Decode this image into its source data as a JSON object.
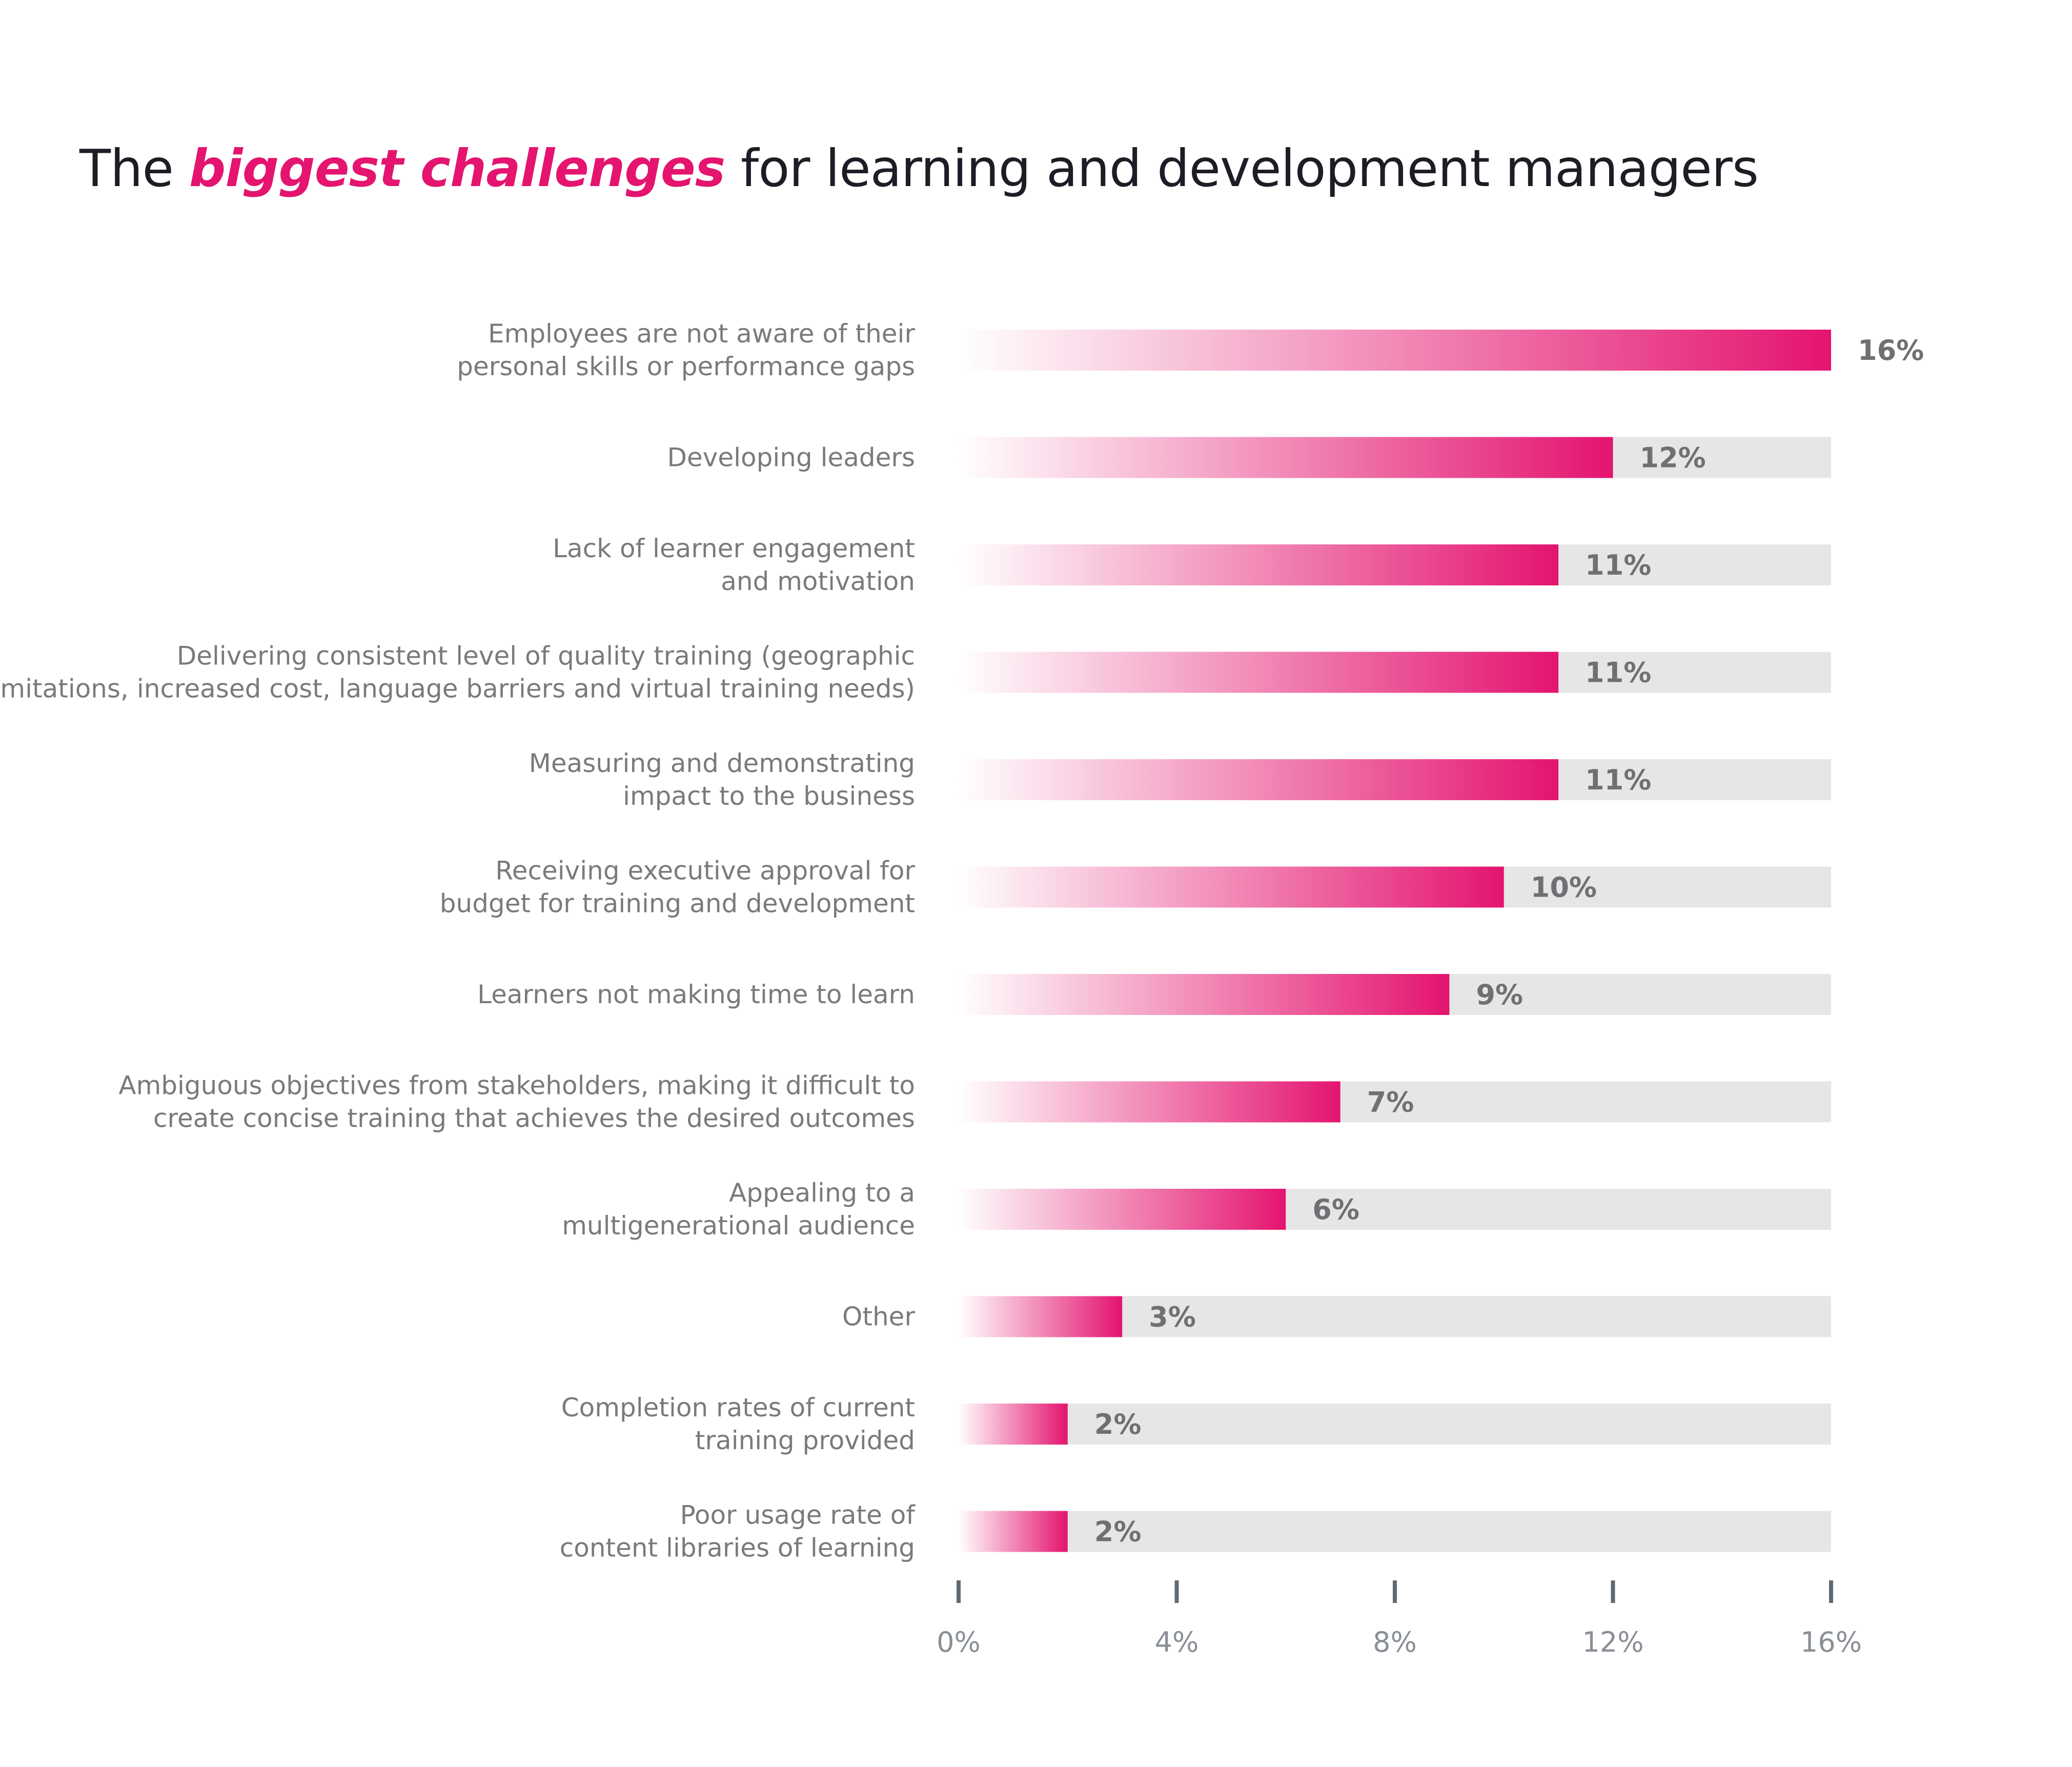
{
  "title": {
    "prefix": "The ",
    "highlight": "biggest challenges",
    "suffix": " for learning and development managers"
  },
  "colors": {
    "bar_start": "#ffffff",
    "bar_end": "#e4146f",
    "track": "#e6e6e6",
    "tick": "#5f6a74",
    "highlight": "#e4146f"
  },
  "chart_data": {
    "type": "bar",
    "orientation": "horizontal",
    "categories": [
      [
        "Employees are not aware of their",
        "personal skills or performance gaps"
      ],
      [
        "Developing leaders"
      ],
      [
        "Lack of learner engagement",
        "and motivation"
      ],
      [
        "Delivering consistent level of quality training (geographic",
        "limitations, increased cost, language barriers and virtual training needs)"
      ],
      [
        "Measuring and demonstrating",
        "impact to the business"
      ],
      [
        "Receiving executive approval for",
        "budget for training and development"
      ],
      [
        "Learners not making time to learn"
      ],
      [
        "Ambiguous objectives from stakeholders, making it difficult to",
        "create concise training that achieves the desired outcomes"
      ],
      [
        "Appealing to a",
        "multigenerational audience"
      ],
      [
        "Other"
      ],
      [
        "Completion rates of current",
        "training provided"
      ],
      [
        "Poor usage rate of",
        "content libraries of learning"
      ]
    ],
    "values": [
      16,
      12,
      11,
      11,
      11,
      10,
      9,
      7,
      6,
      3,
      2,
      2
    ],
    "value_labels": [
      "16%",
      "12%",
      "11%",
      "11%",
      "11%",
      "10%",
      "9%",
      "7%",
      "6%",
      "3%",
      "2%",
      "2%"
    ],
    "xlim": [
      0,
      16
    ],
    "xticks": [
      0,
      4,
      8,
      12,
      16
    ],
    "xtick_labels": [
      "0%",
      "4%",
      "8%",
      "12%",
      "16%"
    ],
    "xlabel": "",
    "ylabel": "",
    "grid": false,
    "legend": "none"
  }
}
